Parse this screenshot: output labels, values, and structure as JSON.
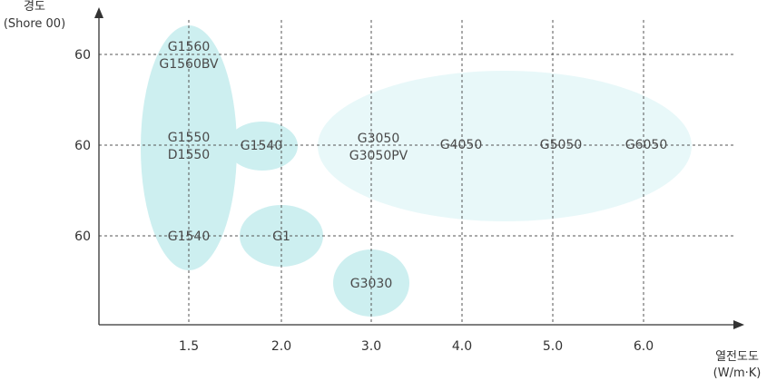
{
  "chart_data": {
    "type": "scatter",
    "x_axis": {
      "title_line1": "열전도도",
      "title_line2": "(W/m·K)",
      "ticks": [
        "1.5",
        "2.0",
        "3.0",
        "4.0",
        "5.0",
        "6.0"
      ]
    },
    "y_axis": {
      "title_line1": "경도",
      "title_line2": "(Shore 00)",
      "ticks": [
        "60",
        "60",
        "60"
      ]
    },
    "grid": "dashed",
    "groups": [
      {
        "name": "low-conductivity",
        "x_range": [
          "1.5",
          "1.5"
        ],
        "labels": [
          "G1560",
          "G1560BV",
          "G1550",
          "D1550",
          "G1540"
        ]
      },
      {
        "name": "g1540-mid",
        "x_range": [
          "1.5",
          "2.0"
        ],
        "labels": [
          "G1540"
        ]
      },
      {
        "name": "g1",
        "x_range": [
          "2.0",
          "2.0"
        ],
        "labels": [
          "G1"
        ]
      },
      {
        "name": "g3030",
        "x_range": [
          "3.0",
          "3.0"
        ],
        "labels": [
          "G3030"
        ]
      },
      {
        "name": "high-conductivity",
        "x_range": [
          "3.0",
          "6.0"
        ],
        "labels": [
          "G3050",
          "G3050PV",
          "G4050",
          "G5050",
          "G6050"
        ]
      }
    ],
    "colors": {
      "blob_strong": "#cdeff0",
      "blob_light": "#e8f8f9",
      "axis": "#333333",
      "grid": "#555555",
      "text": "#4a4a4a"
    }
  }
}
